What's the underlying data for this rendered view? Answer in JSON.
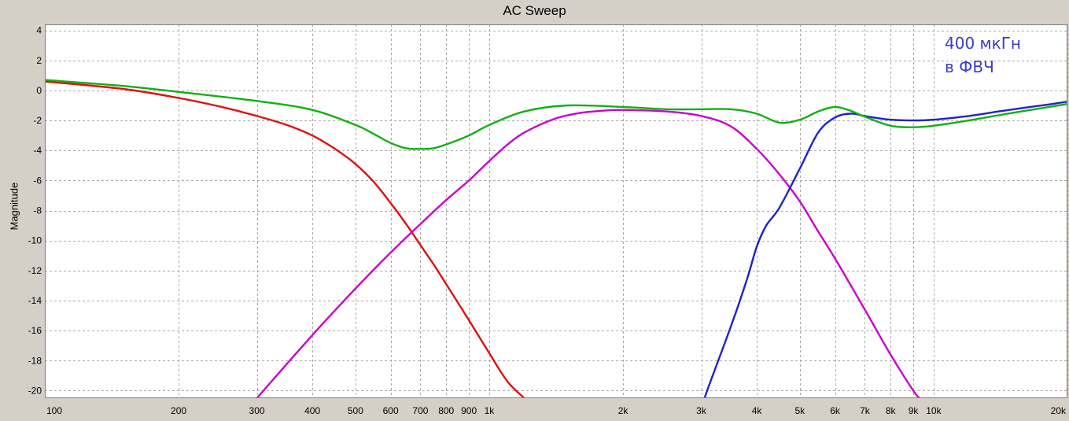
{
  "chart_data": {
    "type": "line",
    "title": "AC Sweep",
    "xlabel": "",
    "ylabel": "Magnitude",
    "xscale": "log",
    "xlim": [
      100,
      20000
    ],
    "ylim": [
      -20.5,
      4.4
    ],
    "grid": true,
    "x_tick_labels": [
      "100",
      "200",
      "300",
      "400",
      "500",
      "600",
      "700",
      "800",
      "900",
      "1k",
      "2k",
      "3k",
      "4k",
      "5k",
      "6k",
      "7k",
      "8k",
      "9k",
      "10k",
      "20k"
    ],
    "x_tick_values": [
      100,
      200,
      300,
      400,
      500,
      600,
      700,
      800,
      900,
      1000,
      2000,
      3000,
      4000,
      5000,
      6000,
      7000,
      8000,
      9000,
      10000,
      20000
    ],
    "y_tick_labels": [
      "4",
      "2",
      "0",
      "-2",
      "-4",
      "-6",
      "-8",
      "-10",
      "-12",
      "-14",
      "-16",
      "-18",
      "-20"
    ],
    "y_tick_values": [
      4,
      2,
      0,
      -2,
      -4,
      -6,
      -8,
      -10,
      -12,
      -14,
      -16,
      -18,
      -20
    ],
    "annotation": {
      "lines": [
        "400 мкГн",
        "в ФВЧ"
      ],
      "color": "#3c3cc8"
    },
    "series": [
      {
        "color": "#e01010",
        "x": [
          100,
          150,
          200,
          250,
          300,
          350,
          400,
          450,
          500,
          550,
          600,
          650,
          700,
          750,
          800,
          900,
          1000,
          1100,
          1200
        ],
        "y": [
          0.6,
          0.1,
          -0.5,
          -1.1,
          -1.7,
          -2.3,
          -3.0,
          -3.9,
          -4.9,
          -6.1,
          -7.5,
          -8.9,
          -10.3,
          -11.6,
          -12.9,
          -15.3,
          -17.5,
          -19.4,
          -20.5
        ]
      },
      {
        "color": "#cc00cc",
        "x": [
          300,
          400,
          500,
          600,
          700,
          800,
          900,
          1000,
          1100,
          1200,
          1400,
          1600,
          1800,
          2000,
          2500,
          3000,
          3500,
          4000,
          4500,
          5000,
          5500,
          6000,
          7000,
          8000,
          9000,
          9300
        ],
        "y": [
          -20.5,
          -16.3,
          -13.2,
          -10.8,
          -8.9,
          -7.3,
          -6.0,
          -4.7,
          -3.6,
          -2.8,
          -1.9,
          -1.5,
          -1.35,
          -1.3,
          -1.4,
          -1.7,
          -2.4,
          -3.9,
          -5.6,
          -7.4,
          -9.4,
          -11.2,
          -14.6,
          -17.6,
          -20.0,
          -20.5
        ]
      },
      {
        "color": "#2020d0",
        "x": [
          3050,
          3200,
          3500,
          3800,
          4000,
          4200,
          4500,
          5000,
          5500,
          6000,
          6500,
          7000,
          7500,
          8000,
          9000,
          10000,
          12000,
          14000,
          16000,
          18000,
          20000
        ],
        "y": [
          -20.5,
          -18.8,
          -15.7,
          -12.6,
          -10.4,
          -9.0,
          -7.8,
          -5.2,
          -2.8,
          -1.8,
          -1.55,
          -1.7,
          -1.85,
          -1.95,
          -2.0,
          -1.95,
          -1.7,
          -1.4,
          -1.15,
          -0.95,
          -0.75
        ]
      },
      {
        "color": "#10b010",
        "x": [
          100,
          150,
          200,
          300,
          400,
          500,
          550,
          600,
          650,
          700,
          750,
          800,
          900,
          1000,
          1200,
          1500,
          2000,
          2500,
          3000,
          3500,
          4000,
          4500,
          5000,
          5500,
          6000,
          6500,
          7000,
          8000,
          9000,
          10000,
          12000,
          15000,
          20000
        ],
        "y": [
          0.7,
          0.3,
          -0.1,
          -0.7,
          -1.3,
          -2.3,
          -2.9,
          -3.5,
          -3.85,
          -3.9,
          -3.85,
          -3.6,
          -3.0,
          -2.3,
          -1.4,
          -1.0,
          -1.1,
          -1.25,
          -1.25,
          -1.25,
          -1.55,
          -2.15,
          -1.95,
          -1.4,
          -1.1,
          -1.35,
          -1.75,
          -2.35,
          -2.45,
          -2.35,
          -2.0,
          -1.5,
          -0.9
        ]
      }
    ]
  }
}
